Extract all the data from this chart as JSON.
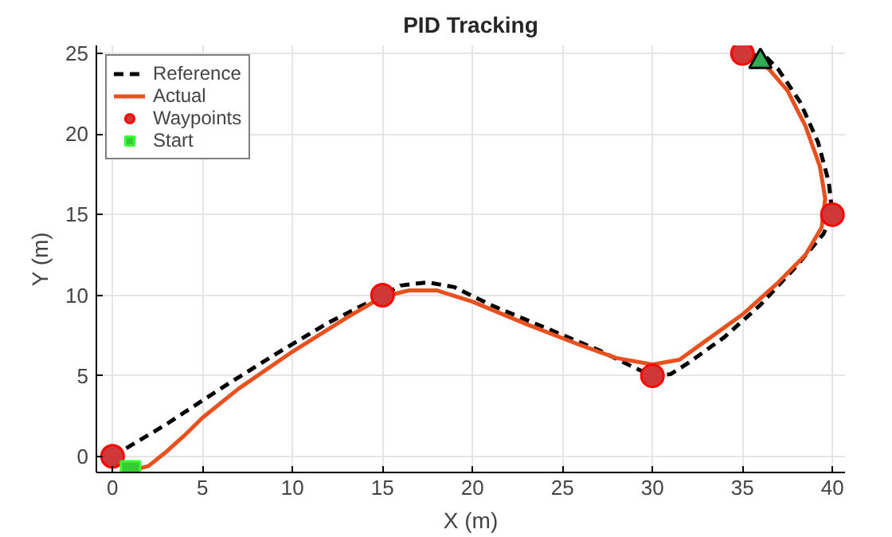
{
  "chart_data": {
    "type": "line",
    "title": "PID Tracking",
    "xlabel": "X (m)",
    "ylabel": "Y (m)",
    "xlim": [
      -0.9,
      40.7
    ],
    "ylim": [
      -1,
      25.5
    ],
    "xticks": [
      0,
      5,
      10,
      15,
      20,
      25,
      30,
      35,
      40
    ],
    "yticks": [
      0,
      5,
      10,
      15,
      20,
      25
    ],
    "grid": true,
    "legend": "top left",
    "series": [
      {
        "name": "Reference",
        "line_style": "dashed",
        "color": "#000000",
        "x": [
          0,
          3,
          6,
          9,
          12,
          15,
          16,
          17.5,
          19,
          21,
          24,
          27,
          29,
          30,
          31,
          32,
          34,
          36,
          38,
          39.5,
          40,
          39.8,
          39.2,
          38.2,
          37,
          36.3,
          35
        ],
        "values": [
          0,
          2,
          4.2,
          6.3,
          8.3,
          10,
          10.6,
          10.8,
          10.5,
          9.4,
          8,
          6.6,
          5.5,
          5,
          5.1,
          5.8,
          7.4,
          9.4,
          11.8,
          13.8,
          15,
          17,
          19.5,
          22,
          24,
          24.8,
          25
        ]
      },
      {
        "name": "Actual",
        "line_style": "solid",
        "color": "#e8501e",
        "x": [
          1,
          2,
          3,
          4,
          5,
          7,
          10,
          13,
          15,
          16.5,
          18,
          20,
          23,
          26,
          28,
          30,
          31.5,
          33,
          35,
          37,
          38.5,
          39.4,
          39.6,
          39.3,
          38.5,
          37.5,
          36.5,
          36
        ],
        "values": [
          -0.9,
          -0.6,
          0.3,
          1.3,
          2.4,
          4.2,
          6.5,
          8.6,
          9.9,
          10.3,
          10.3,
          9.6,
          8.2,
          6.9,
          6.1,
          5.7,
          6,
          7.2,
          8.8,
          10.8,
          12.5,
          14.2,
          16,
          18,
          20.5,
          22.7,
          24,
          24.5
        ]
      },
      {
        "name": "Waypoints",
        "type": "scatter",
        "marker": "circle",
        "color": "#d03838",
        "x": [
          0,
          15,
          30,
          40,
          35
        ],
        "values": [
          0,
          10,
          5,
          15,
          25
        ]
      },
      {
        "name": "Start",
        "type": "scatter",
        "marker": "square",
        "color": "#33cc33",
        "x": [
          1
        ],
        "values": [
          -0.9
        ]
      },
      {
        "type": "scatter",
        "marker": "triangle",
        "color": "#33aa55",
        "x": [
          36
        ],
        "values": [
          24.5
        ]
      }
    ]
  }
}
